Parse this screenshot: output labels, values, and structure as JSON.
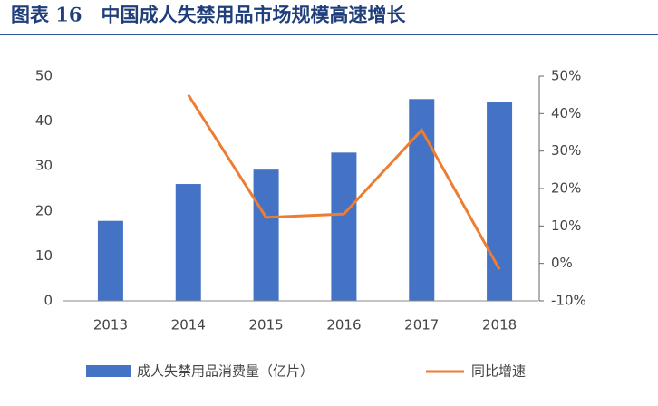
{
  "chart_data": {
    "type": "bar-line",
    "title": "图表 16　中国成人失禁用品市场规模高速增长",
    "categories": [
      "2013",
      "2014",
      "2015",
      "2016",
      "2017",
      "2018"
    ],
    "series": [
      {
        "name": "成人失禁用品消费量（亿片）",
        "type": "bar",
        "color": "#4472c4",
        "values": [
          17.8,
          26,
          29.2,
          33,
          44.9,
          44.2
        ]
      },
      {
        "name": "同比增速",
        "type": "line",
        "axis": "y2",
        "color": "#ed7d31",
        "values": [
          null,
          45,
          12.3,
          13.2,
          35.6,
          -1.6
        ]
      }
    ],
    "ylim": [
      0,
      50
    ],
    "yticks": [
      0,
      10,
      20,
      30,
      40,
      50
    ],
    "y2lim": [
      -10,
      50
    ],
    "y2ticks": [
      {
        "value": -10,
        "label": "-10%"
      },
      {
        "value": 0,
        "label": "0%"
      },
      {
        "value": 10,
        "label": "10%"
      },
      {
        "value": 20,
        "label": "20%"
      },
      {
        "value": 30,
        "label": "30%"
      },
      {
        "value": 40,
        "label": "40%"
      },
      {
        "value": 50,
        "label": "50%"
      }
    ],
    "legend": "bottom"
  }
}
